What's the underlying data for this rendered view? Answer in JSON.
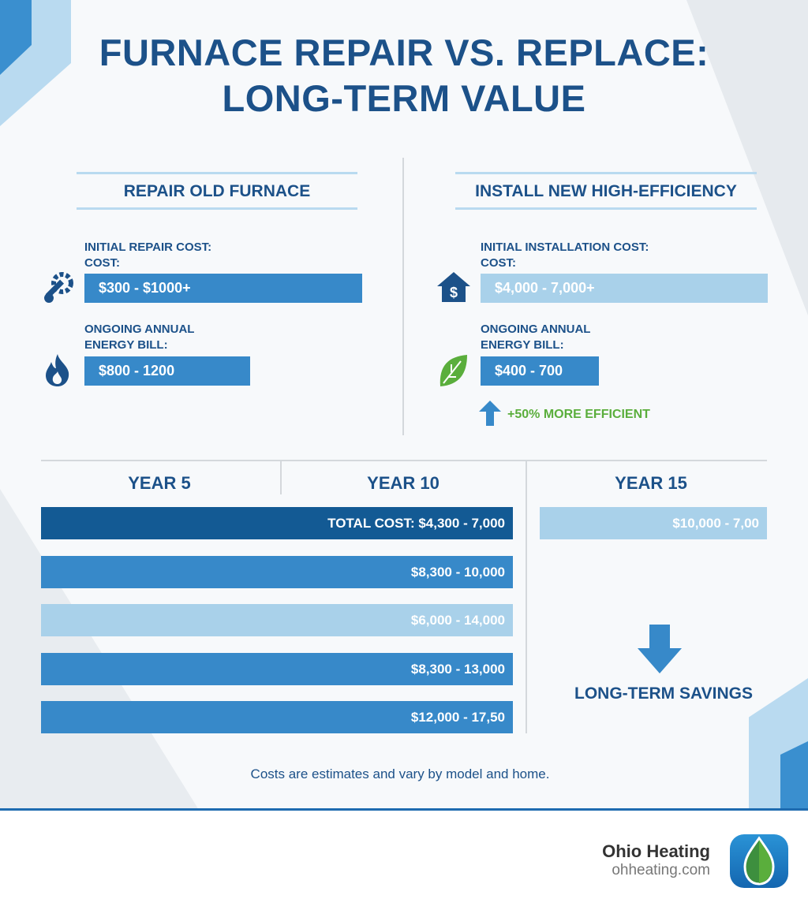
{
  "title": [
    "FURNACE REPAIR VS. REPLACE:",
    "LONG-TERM VALUE"
  ],
  "repair": {
    "heading": "REPAIR OLD FURNACE",
    "initial_label": [
      "INITIAL REPAIR COST:",
      "COST:"
    ],
    "initial_value": "$300 - $1000+",
    "energy_label": [
      "ONGOING ANNUAL",
      "ENERGY BILL:"
    ],
    "energy_value": "$800 - 1200"
  },
  "replace": {
    "heading": "INSTALL NEW HIGH-EFFICIENCY",
    "initial_label": [
      "INITIAL INSTALLATION COST:",
      "COST:"
    ],
    "initial_value": "$4,000 - 7,000+",
    "energy_label": [
      "ONGOING ANNUAL",
      "ENERGY BILL:"
    ],
    "energy_value": "$400 - 700",
    "efficiency_note": "+50% MORE EFFICIENT"
  },
  "timeline": {
    "years": [
      "YEAR 5",
      "YEAR 10",
      "YEAR 15"
    ],
    "rows": [
      "TOTAL COST: $4,300 - 7,000",
      "$8,300 - 10,000",
      "$6,000 - 14,000",
      "$8,300 - 13,000",
      "$12,000 - 17,50"
    ],
    "year15_value": "$10,000 - 7,00",
    "savings_label": "LONG-TERM SAVINGS"
  },
  "note": "Costs are estimates and vary by model and home.",
  "brand": {
    "name": "Ohio Heating",
    "url": "ohheating.com"
  },
  "colors": {
    "primary": "#1c5189",
    "bar": "#3789c9",
    "light": "#a9d1ea",
    "dark": "#135a94",
    "green": "#5aae3c"
  }
}
